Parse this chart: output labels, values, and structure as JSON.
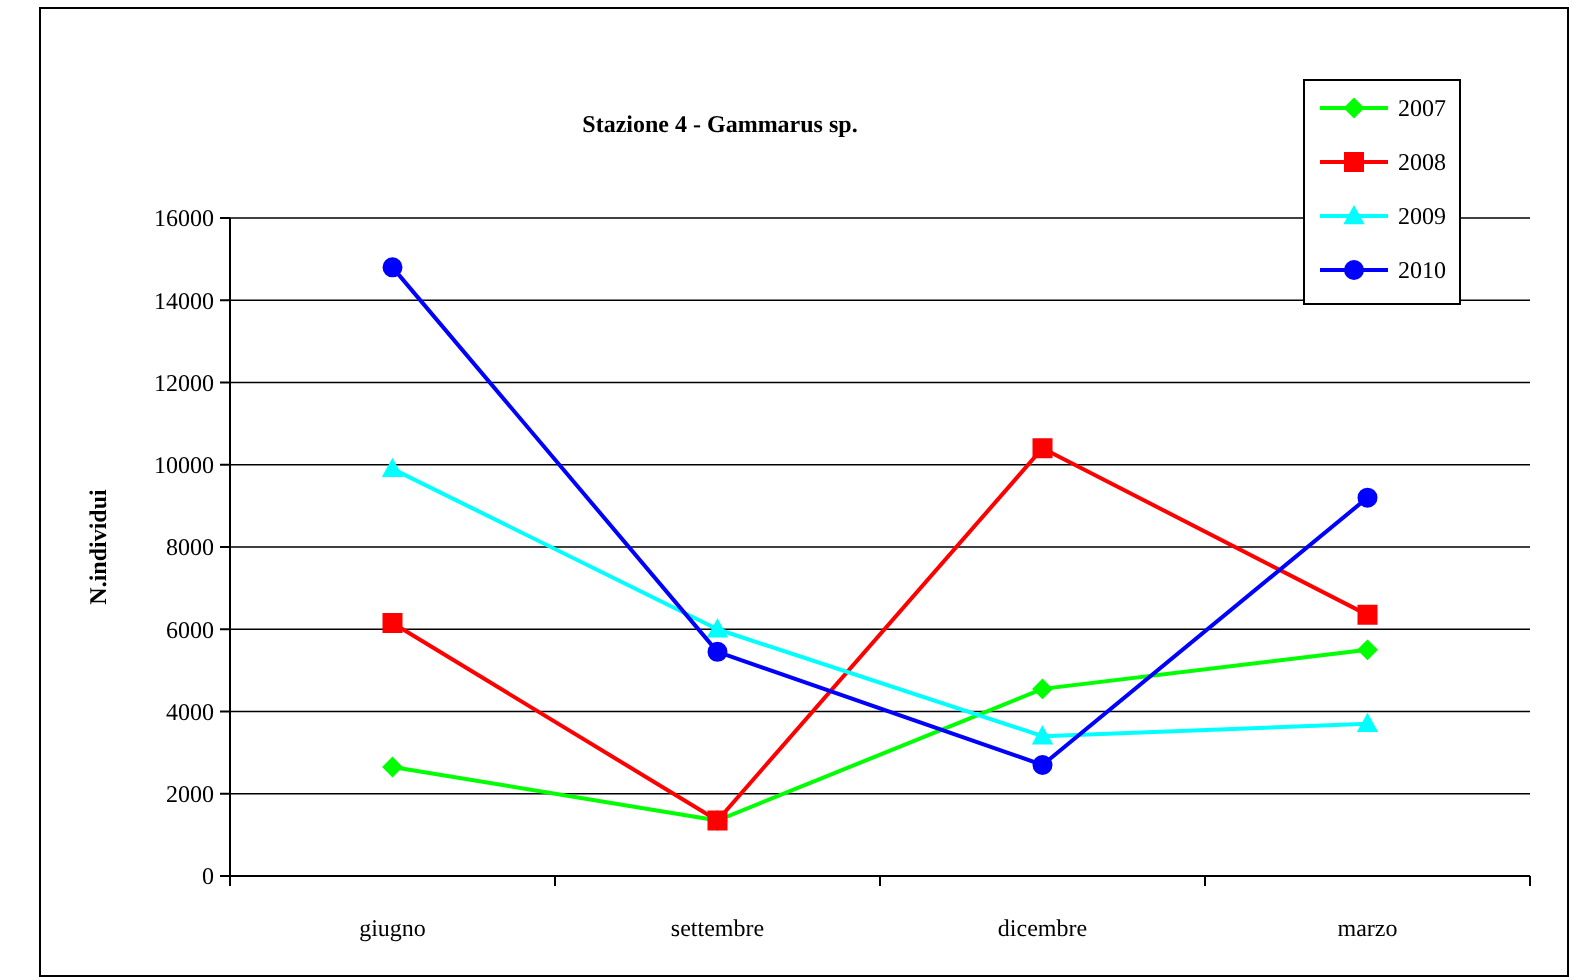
{
  "chart_data": {
    "type": "line",
    "title": "Stazione 4 - Gammarus sp.",
    "ylabel": "N.individui",
    "categories": [
      "giugno",
      "settembre",
      "dicembre",
      "marzo"
    ],
    "series": [
      {
        "name": "2007",
        "color": "#00ff00",
        "marker": "diamond",
        "values": [
          2650,
          1350,
          4550,
          5500
        ]
      },
      {
        "name": "2008",
        "color": "#ff0000",
        "marker": "square",
        "values": [
          6150,
          1350,
          10400,
          6350
        ]
      },
      {
        "name": "2009",
        "color": "#00ffff",
        "marker": "triangle",
        "values": [
          9900,
          6000,
          3400,
          3700
        ]
      },
      {
        "name": "2010",
        "color": "#0000ff",
        "marker": "circle",
        "values": [
          14800,
          5450,
          2700,
          9200
        ]
      }
    ],
    "ylim": [
      0,
      16000
    ],
    "yticks": [
      0,
      2000,
      4000,
      6000,
      8000,
      10000,
      12000,
      14000,
      16000
    ],
    "grid": "y",
    "legend": "top right"
  }
}
